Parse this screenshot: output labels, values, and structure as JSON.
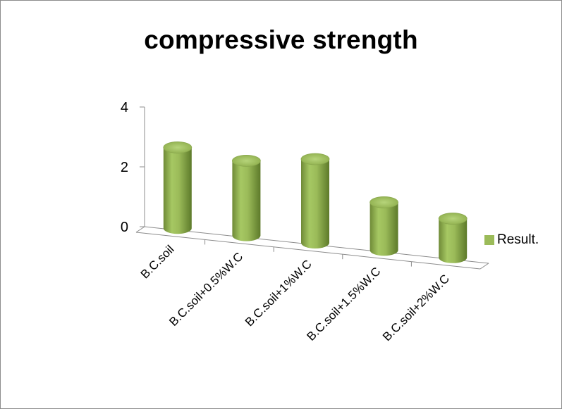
{
  "chart_data": {
    "type": "bar",
    "style": "3d-cylinder",
    "title": "compressive strength",
    "categories": [
      "B.C.soil",
      "B.C.soil+0.5%W.C",
      "B.C.soil+1%W.C",
      "B.C.soil+1.5%W.C",
      "B.C.soil+2%W.C"
    ],
    "series": [
      {
        "name": "Result.",
        "values": [
          2.7,
          2.5,
          2.8,
          1.6,
          1.3
        ],
        "color": "#9bbb59"
      }
    ],
    "ylim": [
      0,
      4
    ],
    "yticks": [
      0,
      2,
      4
    ],
    "xlabel": "",
    "ylabel": "",
    "grid": false,
    "legend": "right"
  }
}
